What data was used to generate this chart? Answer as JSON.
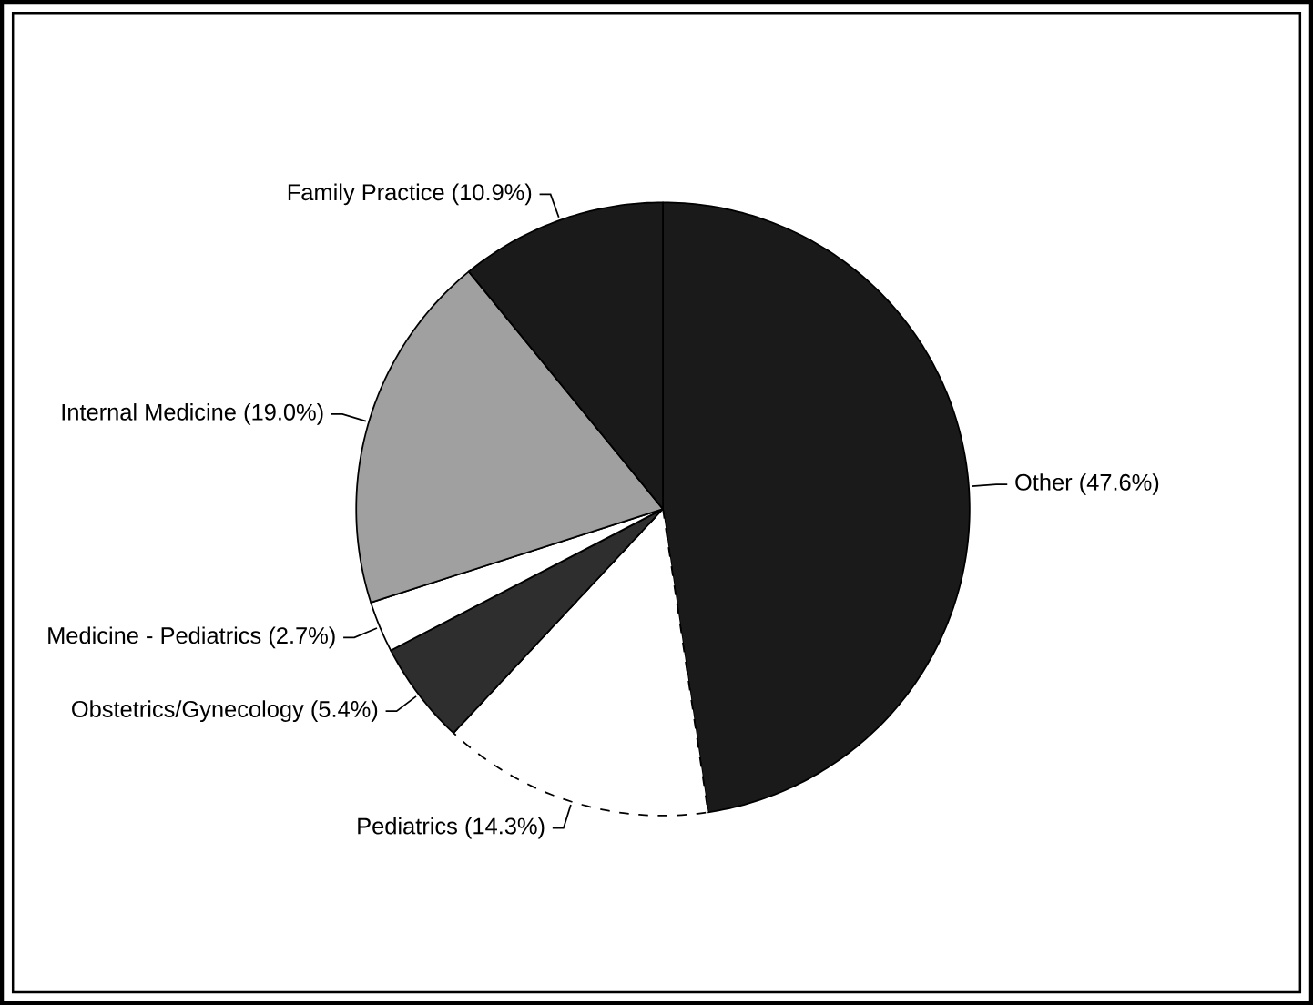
{
  "chart_data": {
    "type": "pie",
    "categories": [
      "Other",
      "Pediatrics",
      "Obstetrics/Gynecology",
      "Medicine - Pediatrics",
      "Internal Medicine",
      "Family Practice"
    ],
    "values": [
      47.6,
      14.3,
      5.4,
      2.7,
      19.0,
      10.9
    ],
    "colors": [
      "#1a1a1a",
      "#ffffff",
      "#2e2e2e",
      "#ffffff",
      "#a0a0a0",
      "#1a1a1a"
    ],
    "value_labels": [
      "(47.6%)",
      "(14.3%)",
      "(5.4%)",
      "(2.7%)",
      "(19.0%)",
      "(10.9%)"
    ]
  }
}
